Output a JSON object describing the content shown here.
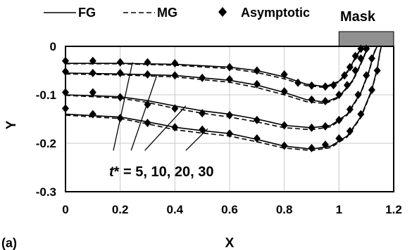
{
  "chart_data": {
    "type": "line",
    "xlabel": "X",
    "ylabel": "Y",
    "xlim": [
      0,
      1.2
    ],
    "ylim": [
      -0.3,
      0
    ],
    "x_ticks": [
      "0",
      "0.2",
      "0.4",
      "0.6",
      "0.8",
      "1",
      "1.2"
    ],
    "y_ticks": [
      "0",
      "-0.1",
      "-0.2",
      "-0.3"
    ],
    "grid": true,
    "panel_label": "(a)",
    "mask_label": "Mask",
    "mask_range": [
      1.0,
      1.2
    ],
    "annotation": {
      "prefix": "t",
      "suffix": "* = 5, 10, 20, 30"
    },
    "legend": [
      {
        "name": "FG",
        "style": "solid"
      },
      {
        "name": "MG",
        "style": "dashed"
      },
      {
        "name": "Asymptotic",
        "style": "diamond"
      }
    ],
    "series": [
      {
        "t": 5,
        "fg": [
          [
            0,
            -0.035
          ],
          [
            0.2,
            -0.035
          ],
          [
            0.4,
            -0.037
          ],
          [
            0.6,
            -0.043
          ],
          [
            0.7,
            -0.05
          ],
          [
            0.8,
            -0.063
          ],
          [
            0.88,
            -0.078
          ],
          [
            0.95,
            -0.083
          ],
          [
            1.0,
            -0.072
          ],
          [
            1.04,
            -0.045
          ],
          [
            1.06,
            -0.022
          ],
          [
            1.08,
            -0.005
          ],
          [
            1.09,
            0
          ]
        ],
        "mg": [
          [
            0,
            -0.036
          ],
          [
            0.2,
            -0.036
          ],
          [
            0.4,
            -0.039
          ],
          [
            0.6,
            -0.046
          ],
          [
            0.7,
            -0.054
          ],
          [
            0.8,
            -0.067
          ],
          [
            0.88,
            -0.081
          ],
          [
            0.95,
            -0.085
          ],
          [
            1.0,
            -0.074
          ],
          [
            1.04,
            -0.047
          ],
          [
            1.06,
            -0.024
          ],
          [
            1.08,
            -0.006
          ],
          [
            1.09,
            0
          ]
        ],
        "asymptotic": [
          [
            0,
            -0.03
          ],
          [
            0.1,
            -0.03
          ],
          [
            0.2,
            -0.033
          ],
          [
            0.3,
            -0.033
          ],
          [
            0.4,
            -0.035
          ],
          [
            0.6,
            -0.043
          ],
          [
            0.7,
            -0.05
          ],
          [
            0.8,
            -0.058
          ],
          [
            0.85,
            -0.075
          ],
          [
            0.9,
            -0.081
          ],
          [
            0.95,
            -0.083
          ],
          [
            0.98,
            -0.08
          ],
          [
            1.02,
            -0.06
          ],
          [
            1.04,
            -0.043
          ],
          [
            1.06,
            -0.02
          ],
          [
            1.08,
            -0.005
          ]
        ]
      },
      {
        "t": 10,
        "fg": [
          [
            0,
            -0.055
          ],
          [
            0.2,
            -0.057
          ],
          [
            0.4,
            -0.06
          ],
          [
            0.6,
            -0.07
          ],
          [
            0.7,
            -0.08
          ],
          [
            0.8,
            -0.095
          ],
          [
            0.88,
            -0.11
          ],
          [
            0.95,
            -0.115
          ],
          [
            1.0,
            -0.104
          ],
          [
            1.05,
            -0.07
          ],
          [
            1.08,
            -0.035
          ],
          [
            1.1,
            -0.008
          ],
          [
            1.11,
            0
          ]
        ],
        "mg": [
          [
            0,
            -0.057
          ],
          [
            0.2,
            -0.059
          ],
          [
            0.4,
            -0.063
          ],
          [
            0.6,
            -0.074
          ],
          [
            0.7,
            -0.085
          ],
          [
            0.8,
            -0.1
          ],
          [
            0.88,
            -0.114
          ],
          [
            0.95,
            -0.118
          ],
          [
            1.0,
            -0.106
          ],
          [
            1.05,
            -0.072
          ],
          [
            1.08,
            -0.037
          ],
          [
            1.1,
            -0.01
          ],
          [
            1.11,
            0
          ]
        ],
        "asymptotic": [
          [
            0,
            -0.052
          ],
          [
            0.1,
            -0.055
          ],
          [
            0.2,
            -0.055
          ],
          [
            0.3,
            -0.058
          ],
          [
            0.4,
            -0.06
          ],
          [
            0.5,
            -0.065
          ],
          [
            0.6,
            -0.068
          ],
          [
            0.7,
            -0.078
          ],
          [
            0.8,
            -0.093
          ],
          [
            0.9,
            -0.11
          ],
          [
            0.95,
            -0.113
          ],
          [
            1.0,
            -0.1
          ],
          [
            1.03,
            -0.08
          ],
          [
            1.06,
            -0.05
          ],
          [
            1.08,
            -0.025
          ],
          [
            1.1,
            -0.005
          ]
        ]
      },
      {
        "t": 20,
        "fg": [
          [
            0,
            -0.1
          ],
          [
            0.2,
            -0.104
          ],
          [
            0.3,
            -0.112
          ],
          [
            0.4,
            -0.123
          ],
          [
            0.5,
            -0.133
          ],
          [
            0.6,
            -0.14
          ],
          [
            0.7,
            -0.15
          ],
          [
            0.8,
            -0.163
          ],
          [
            0.9,
            -0.168
          ],
          [
            0.97,
            -0.163
          ],
          [
            1.03,
            -0.14
          ],
          [
            1.08,
            -0.095
          ],
          [
            1.11,
            -0.05
          ],
          [
            1.13,
            -0.01
          ],
          [
            1.14,
            0
          ]
        ],
        "mg": [
          [
            0,
            -0.101
          ],
          [
            0.2,
            -0.107
          ],
          [
            0.3,
            -0.116
          ],
          [
            0.4,
            -0.128
          ],
          [
            0.5,
            -0.138
          ],
          [
            0.6,
            -0.146
          ],
          [
            0.7,
            -0.156
          ],
          [
            0.8,
            -0.168
          ],
          [
            0.9,
            -0.172
          ],
          [
            0.97,
            -0.166
          ],
          [
            1.03,
            -0.142
          ],
          [
            1.08,
            -0.097
          ],
          [
            1.11,
            -0.052
          ],
          [
            1.13,
            -0.012
          ],
          [
            1.14,
            0
          ]
        ],
        "asymptotic": [
          [
            0,
            -0.095
          ],
          [
            0.1,
            -0.095
          ],
          [
            0.2,
            -0.105
          ],
          [
            0.3,
            -0.12
          ],
          [
            0.4,
            -0.128
          ],
          [
            0.5,
            -0.138
          ],
          [
            0.6,
            -0.142
          ],
          [
            0.7,
            -0.152
          ],
          [
            0.8,
            -0.163
          ],
          [
            0.9,
            -0.168
          ],
          [
            0.95,
            -0.165
          ],
          [
            1.0,
            -0.152
          ],
          [
            1.04,
            -0.13
          ],
          [
            1.07,
            -0.1
          ],
          [
            1.1,
            -0.06
          ],
          [
            1.12,
            -0.025
          ]
        ]
      },
      {
        "t": 30,
        "fg": [
          [
            0,
            -0.14
          ],
          [
            0.2,
            -0.146
          ],
          [
            0.3,
            -0.156
          ],
          [
            0.4,
            -0.167
          ],
          [
            0.5,
            -0.174
          ],
          [
            0.6,
            -0.18
          ],
          [
            0.7,
            -0.192
          ],
          [
            0.8,
            -0.206
          ],
          [
            0.9,
            -0.212
          ],
          [
            0.97,
            -0.206
          ],
          [
            1.03,
            -0.185
          ],
          [
            1.08,
            -0.145
          ],
          [
            1.12,
            -0.09
          ],
          [
            1.14,
            -0.045
          ],
          [
            1.15,
            -0.01
          ],
          [
            1.155,
            0
          ]
        ],
        "mg": [
          [
            0,
            -0.142
          ],
          [
            0.2,
            -0.149
          ],
          [
            0.3,
            -0.16
          ],
          [
            0.4,
            -0.172
          ],
          [
            0.5,
            -0.179
          ],
          [
            0.6,
            -0.185
          ],
          [
            0.7,
            -0.197
          ],
          [
            0.8,
            -0.21
          ],
          [
            0.9,
            -0.215
          ],
          [
            0.97,
            -0.209
          ],
          [
            1.03,
            -0.187
          ],
          [
            1.08,
            -0.147
          ],
          [
            1.12,
            -0.092
          ],
          [
            1.14,
            -0.047
          ],
          [
            1.15,
            -0.012
          ],
          [
            1.155,
            0
          ]
        ],
        "asymptotic": [
          [
            0,
            -0.128
          ],
          [
            0.1,
            -0.14
          ],
          [
            0.2,
            -0.148
          ],
          [
            0.3,
            -0.158
          ],
          [
            0.4,
            -0.167
          ],
          [
            0.5,
            -0.172
          ],
          [
            0.6,
            -0.18
          ],
          [
            0.7,
            -0.19
          ],
          [
            0.8,
            -0.205
          ],
          [
            0.9,
            -0.21
          ],
          [
            0.95,
            -0.203
          ],
          [
            1.0,
            -0.19
          ],
          [
            1.04,
            -0.175
          ],
          [
            1.08,
            -0.14
          ],
          [
            1.12,
            -0.09
          ],
          [
            1.14,
            -0.05
          ]
        ]
      }
    ]
  }
}
